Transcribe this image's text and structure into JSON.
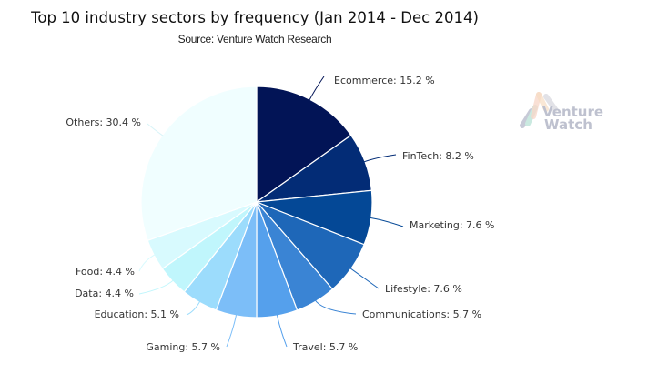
{
  "chart_data": {
    "type": "pie",
    "title": "Top 10 industry sectors by frequency (Jan 2014 - Dec 2014)",
    "subtitle": "Source: Venture Watch Research",
    "start_angle": "12 o'clock, clockwise",
    "legend": "none",
    "slices": [
      {
        "label": "Ecommerce",
        "value": 15.2,
        "text": "Ecommerce: 15.2 %",
        "color": "#021456"
      },
      {
        "label": "FinTech",
        "value": 8.2,
        "text": "FinTech: 8.2 %",
        "color": "#032c76"
      },
      {
        "label": "Marketing",
        "value": 7.6,
        "text": "Marketing: 7.6 %",
        "color": "#044896"
      },
      {
        "label": "Lifestyle",
        "value": 7.6,
        "text": "Lifestyle: 7.6 %",
        "color": "#1e67b8"
      },
      {
        "label": "Communications",
        "value": 5.7,
        "text": "Communications: 5.7 %",
        "color": "#3a84d4"
      },
      {
        "label": "Travel",
        "value": 5.7,
        "text": "Travel: 5.7 %",
        "color": "#55a0ec"
      },
      {
        "label": "Gaming",
        "value": 5.7,
        "text": "Gaming: 5.7 %",
        "color": "#7cbef8"
      },
      {
        "label": "Education",
        "value": 5.1,
        "text": "Education: 5.1 %",
        "color": "#9cdcfc"
      },
      {
        "label": "Data",
        "value": 4.4,
        "text": "Data: 4.4 %",
        "color": "#c0f6fc"
      },
      {
        "label": "Food",
        "value": 4.4,
        "text": "Food: 4.4 %",
        "color": "#d8fafe"
      },
      {
        "label": "Others",
        "value": 30.4,
        "text": "Others: 30.4 %",
        "color": "#f0feff"
      }
    ]
  },
  "logo": {
    "text_line1": "Venture",
    "text_line2": "Watch"
  }
}
